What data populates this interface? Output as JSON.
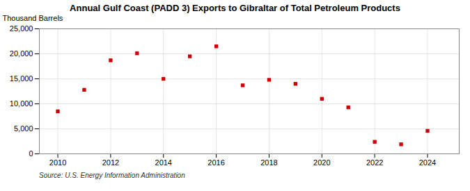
{
  "chart_data": {
    "type": "scatter",
    "title": "Annual Gulf Coast (PADD 3) Exports to Gibraltar of Total Petroleum Products",
    "ylabel": "Thousand Barrels",
    "caption": "Source: U.S. Energy Information Administration",
    "x": [
      2010,
      2011,
      2012,
      2013,
      2014,
      2015,
      2016,
      2017,
      2018,
      2019,
      2020,
      2021,
      2022,
      2023,
      2024
    ],
    "values": [
      8500,
      12800,
      18700,
      20100,
      15000,
      19500,
      21500,
      13700,
      14800,
      14000,
      11000,
      9300,
      2400,
      1900,
      4600
    ],
    "color": "#cc0000",
    "marker": "square",
    "xlim": [
      2009.3,
      2025.2
    ],
    "xticks": [
      2010,
      2012,
      2014,
      2016,
      2018,
      2020,
      2022,
      2024
    ],
    "ylim": [
      0,
      25000
    ],
    "yticks": [
      0,
      {
        "value": 5000,
        "label": "5,000"
      },
      {
        "value": 10000,
        "label": "10,000"
      },
      {
        "value": 15000,
        "label": "15,000"
      },
      {
        "value": 20000,
        "label": "20,000"
      },
      {
        "value": 25000,
        "label": "25,000"
      }
    ],
    "grid": true
  }
}
